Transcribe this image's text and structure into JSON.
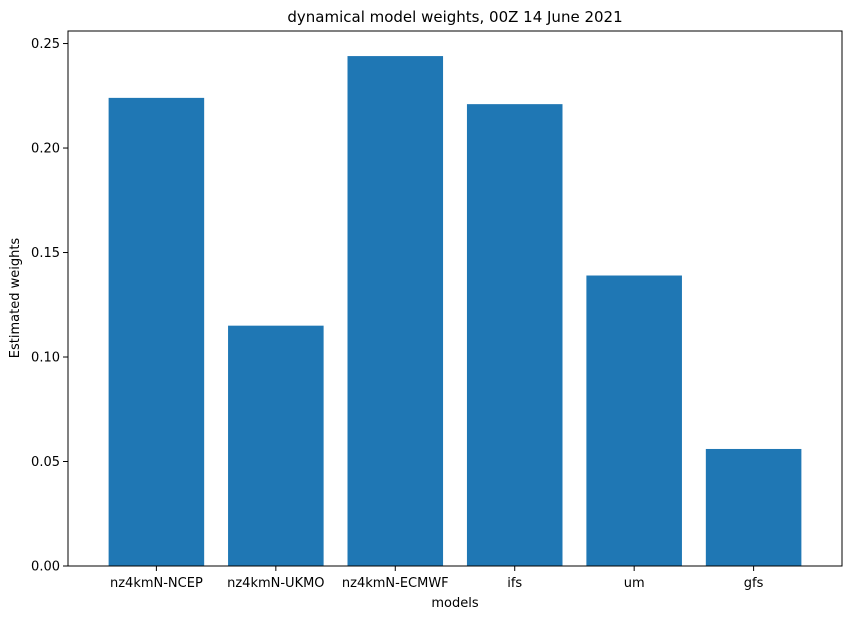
{
  "chart_data": {
    "type": "bar",
    "title": "dynamical model weights, 00Z 14 June 2021",
    "xlabel": "models",
    "ylabel": "Estimated weights",
    "categories": [
      "nz4kmN-NCEP",
      "nz4kmN-UKMO",
      "nz4kmN-ECMWF",
      "ifs",
      "um",
      "gfs"
    ],
    "values": [
      0.224,
      0.115,
      0.244,
      0.221,
      0.139,
      0.056
    ],
    "ylim": [
      0,
      0.256
    ],
    "yticks": [
      0.0,
      0.05,
      0.1,
      0.15,
      0.2,
      0.25
    ],
    "ytick_labels": [
      "0.00",
      "0.05",
      "0.10",
      "0.15",
      "0.20",
      "0.25"
    ],
    "grid": false,
    "bar_color": "#1f77b4"
  }
}
